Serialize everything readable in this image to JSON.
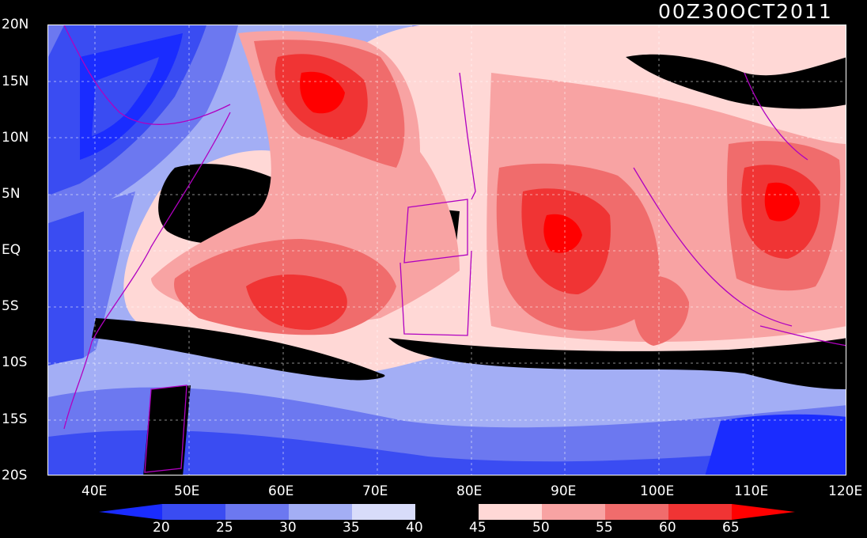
{
  "map": {
    "timestamp": "00Z30OCT2011",
    "lat_labels": [
      "20N",
      "15N",
      "10N",
      "5N",
      "EQ",
      "5S",
      "10S",
      "15S",
      "20S"
    ],
    "lon_labels": [
      "40E",
      "50E",
      "60E",
      "70E",
      "80E",
      "90E",
      "100E",
      "110E",
      "120E"
    ],
    "lon_range": [
      35,
      120
    ],
    "lat_range": [
      -20,
      20
    ],
    "gridlines": true
  },
  "colorbar": {
    "levels": [
      "20",
      "25",
      "30",
      "35",
      "40",
      "45",
      "50",
      "55",
      "60",
      "65"
    ],
    "colors": [
      "#1a2cff",
      "#3a4cf2",
      "#6c78f0",
      "#a3aef5",
      "#d8dcfa",
      "#000000",
      "#ffd8d6",
      "#f8a3a3",
      "#f06c6c",
      "#f03434",
      "#ff0000"
    ]
  }
}
